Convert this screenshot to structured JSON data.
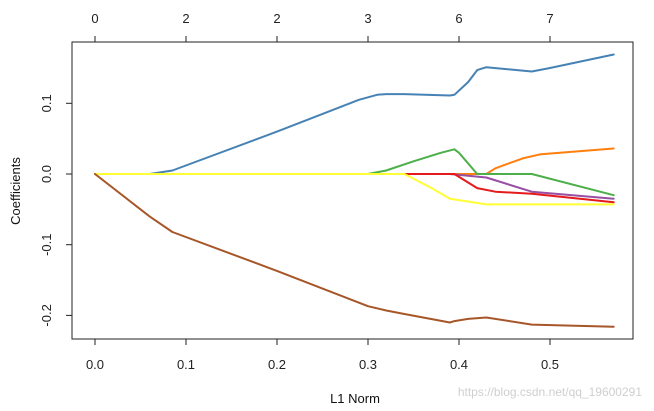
{
  "chart_data": {
    "type": "line",
    "xlabel": "L1 Norm",
    "ylabel": "Coefficients",
    "xlim": [
      0,
      0.57
    ],
    "ylim": [
      -0.225,
      0.18
    ],
    "x_ticks": [
      0.0,
      0.1,
      0.2,
      0.3,
      0.4,
      0.5
    ],
    "x_tick_labels": [
      "0.0",
      "0.1",
      "0.2",
      "0.3",
      "0.4",
      "0.5"
    ],
    "y_ticks": [
      -0.2,
      -0.1,
      0.0,
      0.1
    ],
    "y_tick_labels": [
      "-0.2",
      "-0.1",
      "0.0",
      "0.1"
    ],
    "top_ticks": [
      0.0,
      0.1,
      0.2,
      0.3,
      0.4,
      0.5
    ],
    "top_tick_labels": [
      "0",
      "2",
      "2",
      "3",
      "6",
      "7"
    ],
    "grid": false,
    "legend": "none",
    "series": [
      {
        "color": "#4682b4",
        "x": [
          0.0,
          0.06,
          0.085,
          0.2,
          0.29,
          0.31,
          0.32,
          0.34,
          0.39,
          0.395,
          0.41,
          0.42,
          0.43,
          0.48,
          0.5,
          0.57
        ],
        "y": [
          0.0,
          0.0,
          0.005,
          0.06,
          0.105,
          0.112,
          0.113,
          0.113,
          0.111,
          0.112,
          0.13,
          0.147,
          0.151,
          0.145,
          0.15,
          0.169
        ]
      },
      {
        "color": "#ff7f0e",
        "x": [
          0.0,
          0.43,
          0.44,
          0.47,
          0.49,
          0.57
        ],
        "y": [
          0.0,
          0.0,
          0.008,
          0.022,
          0.028,
          0.036
        ]
      },
      {
        "color": "#4daf4a",
        "x": [
          0.0,
          0.3,
          0.32,
          0.35,
          0.38,
          0.395,
          0.4,
          0.42,
          0.43,
          0.48,
          0.57
        ],
        "y": [
          0.0,
          0.0,
          0.005,
          0.018,
          0.03,
          0.035,
          0.03,
          0.0,
          0.0,
          0.0,
          -0.03
        ]
      },
      {
        "color": "#984ea3",
        "x": [
          0.0,
          0.39,
          0.43,
          0.48,
          0.57
        ],
        "y": [
          0.0,
          0.0,
          -0.005,
          -0.025,
          -0.035
        ]
      },
      {
        "color": "#e41a1c",
        "x": [
          0.0,
          0.395,
          0.42,
          0.44,
          0.48,
          0.57
        ],
        "y": [
          0.0,
          0.0,
          -0.02,
          -0.025,
          -0.028,
          -0.04
        ]
      },
      {
        "color": "#ffff33",
        "x": [
          0.0,
          0.34,
          0.37,
          0.39,
          0.43,
          0.57
        ],
        "y": [
          0.0,
          0.0,
          -0.02,
          -0.035,
          -0.043,
          -0.043
        ]
      },
      {
        "color": "#a65628",
        "x": [
          0.0,
          0.06,
          0.085,
          0.2,
          0.3,
          0.32,
          0.34,
          0.39,
          0.395,
          0.41,
          0.43,
          0.48,
          0.57
        ],
        "y": [
          0.0,
          -0.06,
          -0.082,
          -0.137,
          -0.187,
          -0.193,
          -0.198,
          -0.21,
          -0.208,
          -0.205,
          -0.203,
          -0.213,
          -0.216
        ]
      }
    ]
  },
  "watermark": "https://blog.csdn.net/qq_19600291"
}
